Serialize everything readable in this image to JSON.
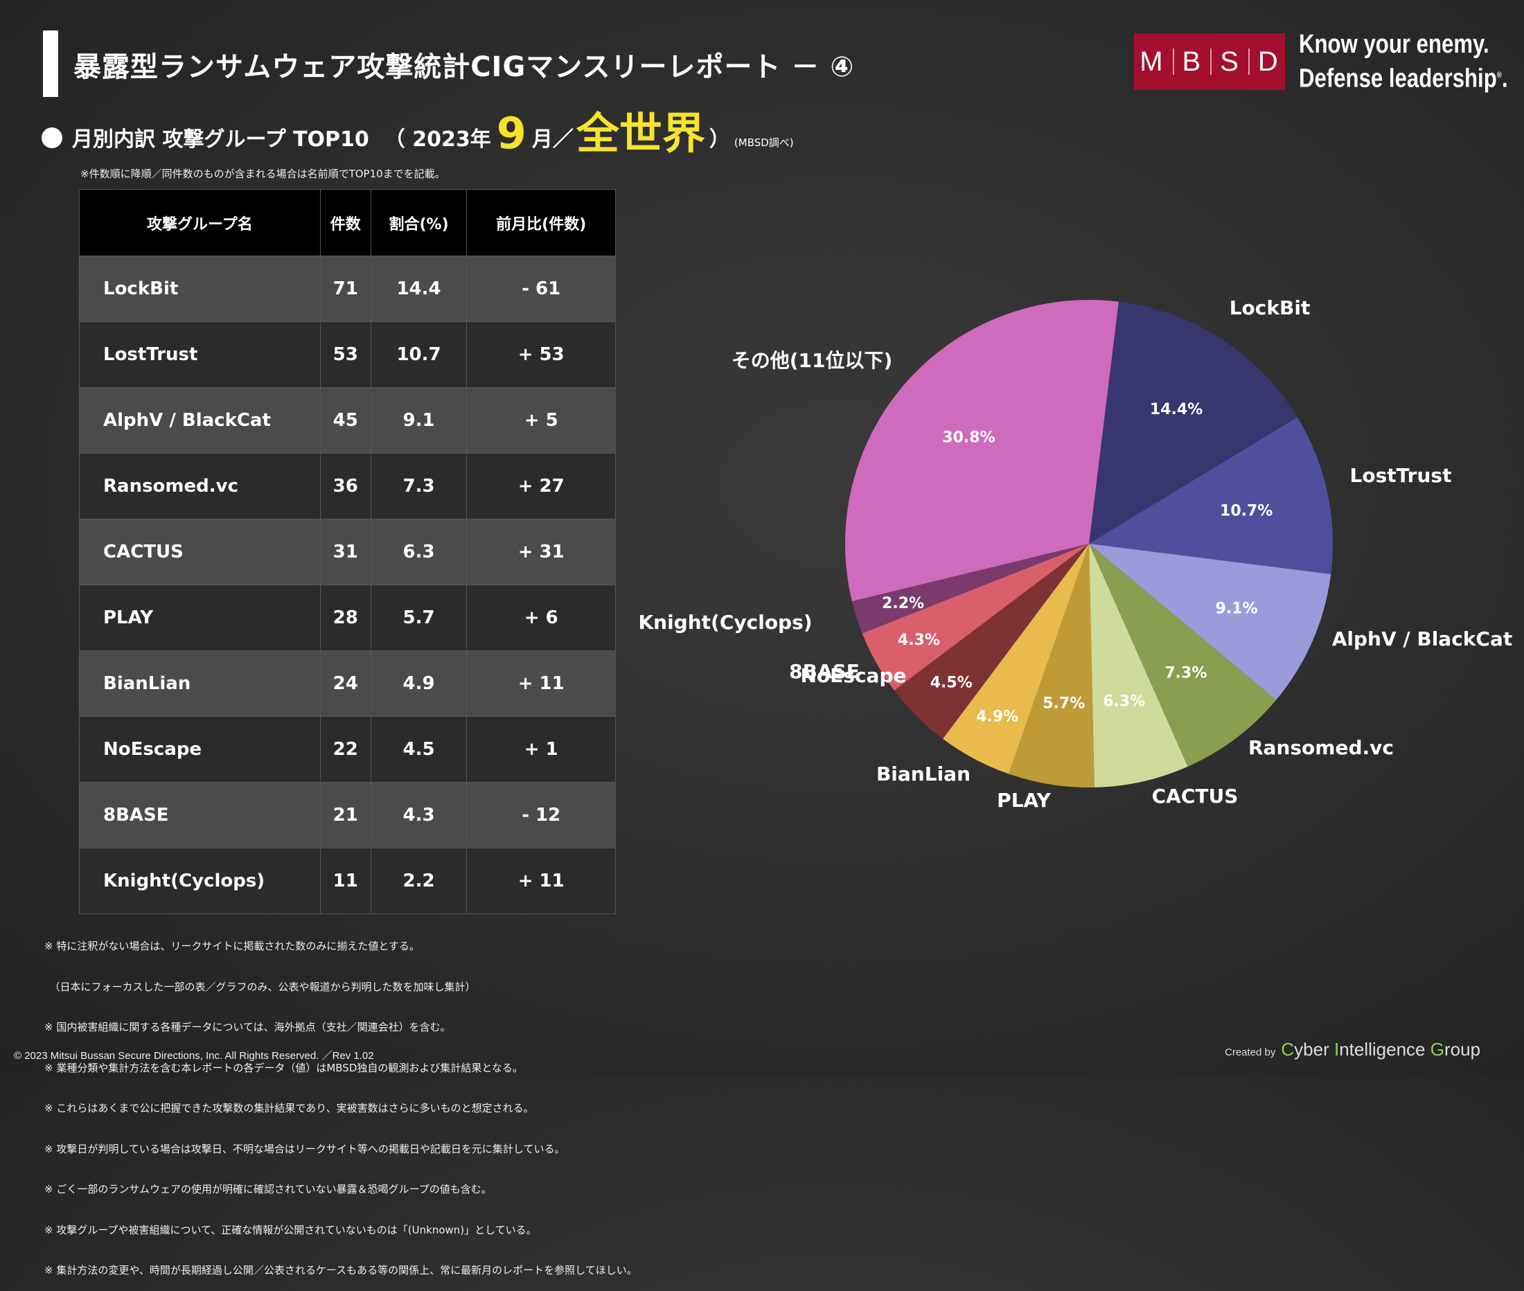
{
  "header": {
    "title": "暴露型ランサムウェア攻撃統計CIGマンスリーレポート － ④",
    "logo_letters": [
      "M",
      "B",
      "S",
      "D"
    ],
    "tagline_line1": "Know your enemy.",
    "tagline_line2": "Defense leadership",
    "tagline_mark": "®"
  },
  "subtitle": {
    "label": "月別内訳 攻撃グループ TOP10",
    "open": "（ 2023年",
    "month": "9",
    "month_unit": "月／",
    "region": "全世界",
    "close": "）",
    "source": "(MBSD調べ)"
  },
  "table_note": "※件数順に降順／同件数のものが含まれる場合は名前順でTOP10までを記載。",
  "table": {
    "headers": [
      "攻撃グループ名",
      "件数",
      "割合(%)",
      "前月比(件数)"
    ],
    "rows": [
      {
        "name": "LockBit",
        "count": "71",
        "ratio": "14.4",
        "change": "- 61"
      },
      {
        "name": "LostTrust",
        "count": "53",
        "ratio": "10.7",
        "change": "+ 53"
      },
      {
        "name": "AlphV / BlackCat",
        "count": "45",
        "ratio": "9.1",
        "change": "+ 5"
      },
      {
        "name": "Ransomed.vc",
        "count": "36",
        "ratio": "7.3",
        "change": "+ 27"
      },
      {
        "name": "CACTUS",
        "count": "31",
        "ratio": "6.3",
        "change": "+ 31"
      },
      {
        "name": "PLAY",
        "count": "28",
        "ratio": "5.7",
        "change": "+ 6"
      },
      {
        "name": "BianLian",
        "count": "24",
        "ratio": "4.9",
        "change": "+ 11"
      },
      {
        "name": "NoEscape",
        "count": "22",
        "ratio": "4.5",
        "change": "+ 1"
      },
      {
        "name": "8BASE",
        "count": "21",
        "ratio": "4.3",
        "change": "- 12"
      },
      {
        "name": "Knight(Cyclops)",
        "count": "11",
        "ratio": "2.2",
        "change": "+ 11"
      }
    ]
  },
  "chart_data": {
    "type": "pie",
    "categories": [
      "LockBit",
      "LostTrust",
      "AlphV / BlackCat",
      "Ransomed.vc",
      "CACTUS",
      "PLAY",
      "BianLian",
      "NoEscape",
      "8BASE",
      "Knight(Cyclops)",
      "その他(11位以下)"
    ],
    "values": [
      14.4,
      10.7,
      9.1,
      7.3,
      6.3,
      5.7,
      4.9,
      4.5,
      4.3,
      2.2,
      30.8
    ],
    "labels": [
      "14.4%",
      "10.7%",
      "9.1%",
      "7.3%",
      "6.3%",
      "5.7%",
      "4.9%",
      "4.5%",
      "4.3%",
      "2.2%",
      "30.8%"
    ],
    "colors": [
      "#37366f",
      "#4f4f9e",
      "#9b9bdc",
      "#8a9e4f",
      "#cfdb9b",
      "#bf9b38",
      "#e8bb4c",
      "#7e3234",
      "#d95f6a",
      "#7a3a6c",
      "#cf6bbd"
    ],
    "direction": "clockwise"
  },
  "footnotes": [
    "※ 特に注釈がない場合は、リークサイトに掲載された数のみに揃えた値とする。",
    "　（日本にフォーカスした一部の表／グラフのみ、公表や報道から判明した数を加味し集計）",
    "※ 国内被害組織に関する各種データについては、海外拠点（支社／関連会社）を含む。",
    "※ 業種分類や集計方法を含む本レポートの各データ（値）はMBSD独自の観測および集計結果となる。",
    "※ これらはあくまで公に把握できた攻撃数の集計結果であり、実被害数はさらに多いものと想定される。",
    "※ 攻撃日が判明している場合は攻撃日、不明な場合はリークサイト等への掲載日や記載日を元に集計している。",
    "※ ごく一部のランサムウェアの使用が明確に確認されていない暴露＆恐喝グループの値も含む。",
    "※ 攻撃グループや被害組織について、正確な情報が公開されていないものは「(Unknown)」としている。",
    "※ 集計方法の変更や、時間が長期経過し公開／公表されるケースもある等の関係上、常に最新月のレポートを参照してほしい。"
  ],
  "footer": {
    "copyright": "© 2023 Mitsui Bussan Secure Directions, Inc.  All Rights Reserved. ／Rev 1.02",
    "created_by": "Created by",
    "cig_c": "C",
    "cig_yber": "yber ",
    "cig_i": "I",
    "cig_ntel": "ntelligence ",
    "cig_g": "G",
    "cig_roup": "roup"
  }
}
